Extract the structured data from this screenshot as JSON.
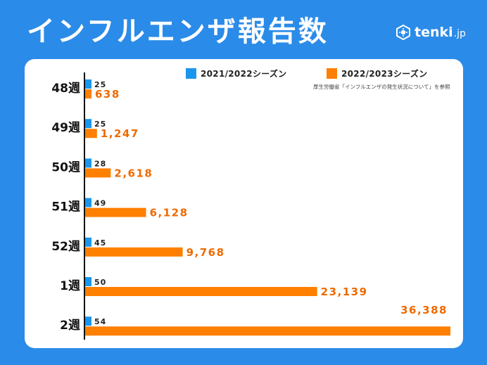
{
  "header": {
    "title": "インフルエンザ報告数",
    "brand_name": "tenki",
    "brand_suffix": ".jp",
    "brand_icon": "sun-cube-icon"
  },
  "source_note": "厚生労働省「インフルエンザの発生状況について」を参照",
  "colors": {
    "background": "#2b8be8",
    "series_2021": "#1a96ee",
    "series_2022": "#ff7f00",
    "label_2021": "#222222",
    "label_2022": "#ee6a00"
  },
  "chart_data": {
    "type": "bar",
    "orientation": "horizontal",
    "categories": [
      "48週",
      "49週",
      "50週",
      "51週",
      "52週",
      "1週",
      "2週"
    ],
    "series": [
      {
        "name": "2021/2022シーズン",
        "values": [
          25,
          25,
          28,
          49,
          45,
          50,
          54
        ],
        "labels": [
          "25",
          "25",
          "28",
          "49",
          "45",
          "50",
          "54"
        ]
      },
      {
        "name": "2022/2023シーズン",
        "values": [
          638,
          1247,
          2618,
          6128,
          9768,
          23139,
          36388
        ],
        "labels": [
          "638",
          "1,247",
          "2,618",
          "6,128",
          "9,768",
          "23,139",
          "36,388"
        ]
      }
    ],
    "xlim": [
      0,
      36388
    ],
    "grid": false,
    "legend_position": "top"
  }
}
